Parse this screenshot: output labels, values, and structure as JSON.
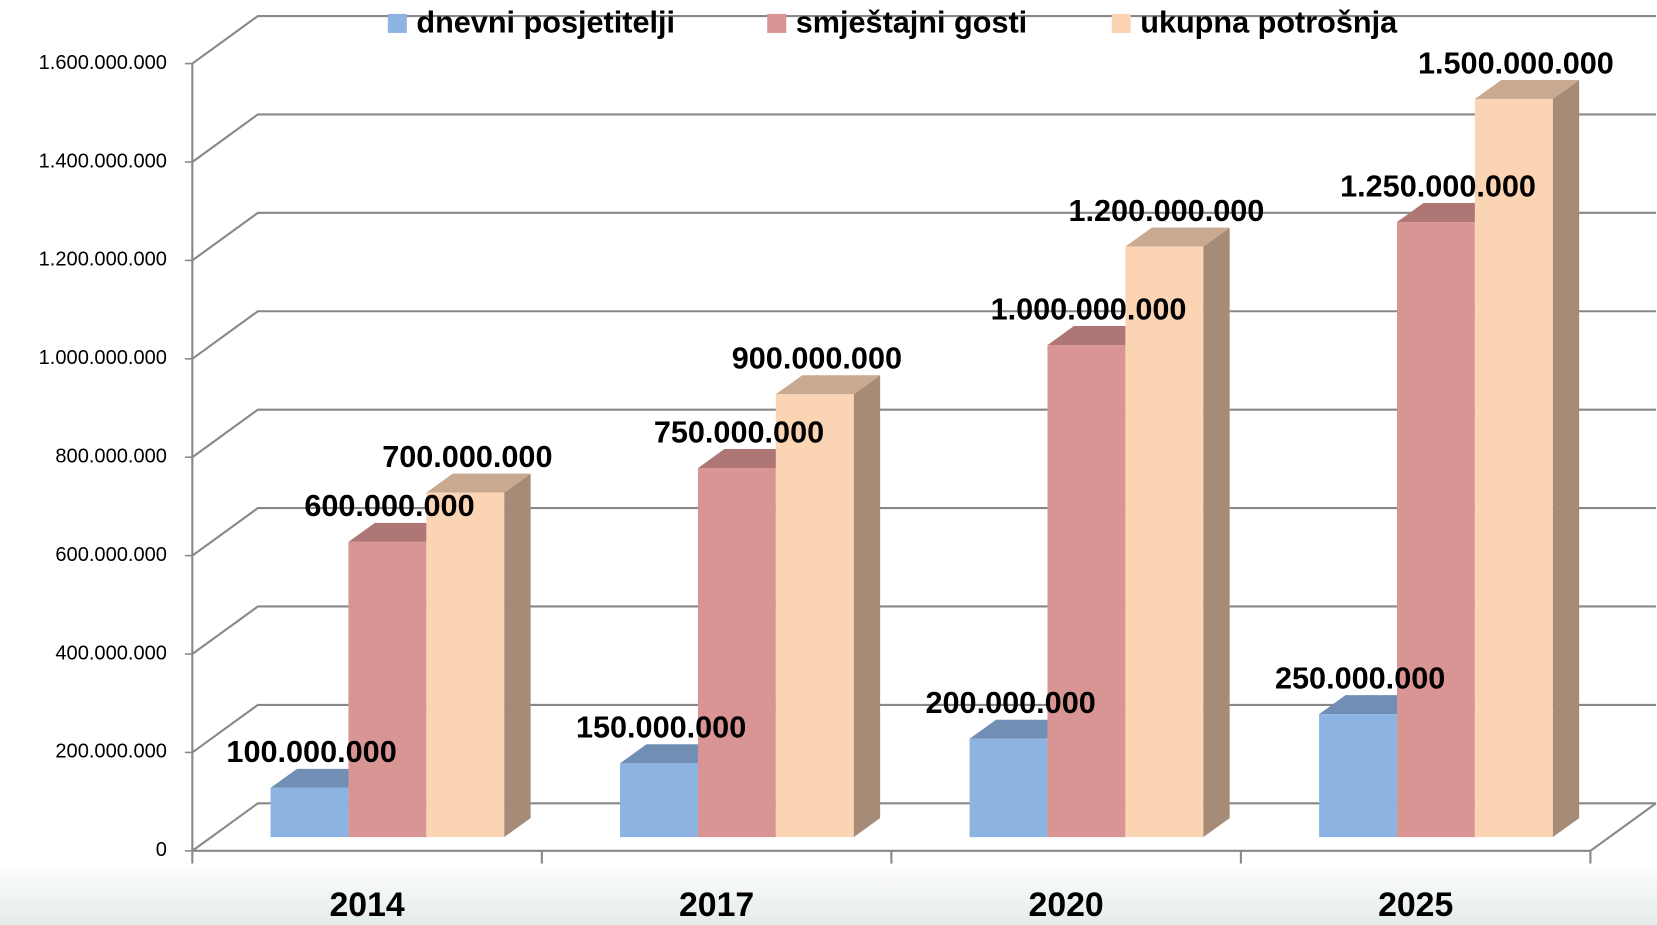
{
  "chart_data": {
    "type": "bar3d",
    "categories": [
      "2014",
      "2017",
      "2020",
      "2025"
    ],
    "series": [
      {
        "name": "dnevni posjetitelji",
        "color": "#8db3e2",
        "values": [
          100000000,
          150000000,
          200000000,
          250000000
        ],
        "value_labels": [
          "100.000.000",
          "150.000.000",
          "200.000.000",
          "250.000.000"
        ]
      },
      {
        "name": "smještajni gosti",
        "color": "#d99594",
        "values": [
          600000000,
          750000000,
          1000000000,
          1250000000
        ],
        "value_labels": [
          "600.000.000",
          "750.000.000",
          "1.000.000.000",
          "1.250.000.000"
        ]
      },
      {
        "name": "ukupna potrošnja",
        "color": "#fbd4b4",
        "values": [
          700000000,
          900000000,
          1200000000,
          1500000000
        ],
        "value_labels": [
          "700.000.000",
          "900.000.000",
          "1.200.000.000",
          "1.500.000.000"
        ]
      }
    ],
    "ylim": [
      0,
      1600000000
    ],
    "yticks": [
      0,
      {
        "value": 200000000,
        "label": "200.000.000"
      },
      {
        "value": 400000000,
        "label": "400.000.000"
      },
      {
        "value": 600000000,
        "label": "600.000.000"
      },
      {
        "value": 800000000,
        "label": "800.000.000"
      },
      {
        "value": 1000000000,
        "label": "1.000.000.000"
      },
      {
        "value": 1200000000,
        "label": "1.200.000.000"
      },
      {
        "value": 1400000000,
        "label": "1.400.000.000"
      },
      {
        "value": 1600000000,
        "label": "1.600.000.000"
      }
    ],
    "grid": true,
    "legend": "top"
  }
}
